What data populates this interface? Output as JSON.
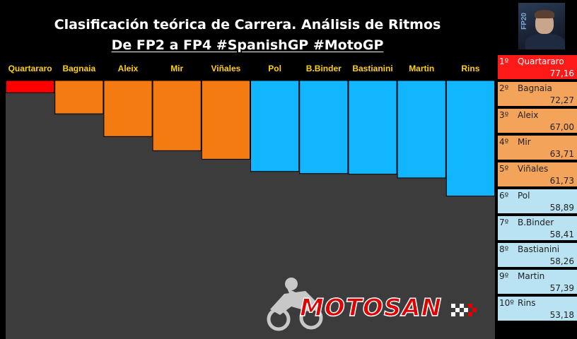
{
  "header": {
    "title": "Clasificación teórica de Carrera. Análisis de Ritmos",
    "subtitle": "De FP2 a FP4 #SpanishGP #MotoGP"
  },
  "photo": {
    "badge": "FP20"
  },
  "chart_data": {
    "type": "bar",
    "categories": [
      "Quartararo",
      "Bagnaia",
      "Aleix",
      "Mir",
      "Viñales",
      "Pol",
      "B.Binder",
      "Bastianini",
      "Martin",
      "Rins"
    ],
    "values": [
      77.16,
      72.27,
      67.0,
      63.71,
      61.73,
      58.89,
      58.41,
      58.26,
      57.39,
      53.18
    ],
    "colors": [
      "#ff0000",
      "#f47a12",
      "#f47a12",
      "#f47a12",
      "#f47a12",
      "#12b6ff",
      "#12b6ff",
      "#12b6ff",
      "#12b6ff",
      "#12b6ff"
    ],
    "ylim": [
      20,
      80
    ],
    "background": "#3c3c3c",
    "label_color": "#ffd200"
  },
  "ranking": [
    {
      "pos": "1º",
      "name": "Quartararo",
      "value": "77,16",
      "tier": "first"
    },
    {
      "pos": "2º",
      "name": "Bagnaia",
      "value": "72,27",
      "tier": "orange"
    },
    {
      "pos": "3º",
      "name": "Aleix",
      "value": "67,00",
      "tier": "orange"
    },
    {
      "pos": "4º",
      "name": "Mir",
      "value": "63,71",
      "tier": "orange"
    },
    {
      "pos": "5º",
      "name": "Viñales",
      "value": "61,73",
      "tier": "orange"
    },
    {
      "pos": "6º",
      "name": "Pol",
      "value": "58,89",
      "tier": "blue"
    },
    {
      "pos": "7º",
      "name": "B.Binder",
      "value": "58,41",
      "tier": "blue"
    },
    {
      "pos": "8º",
      "name": "Bastianini",
      "value": "58,26",
      "tier": "blue"
    },
    {
      "pos": "9º",
      "name": "Martin",
      "value": "57,39",
      "tier": "blue"
    },
    {
      "pos": "10º",
      "name": "Rins",
      "value": "53,18",
      "tier": "blue"
    }
  ],
  "logo": {
    "text": "MOTOSAN"
  }
}
